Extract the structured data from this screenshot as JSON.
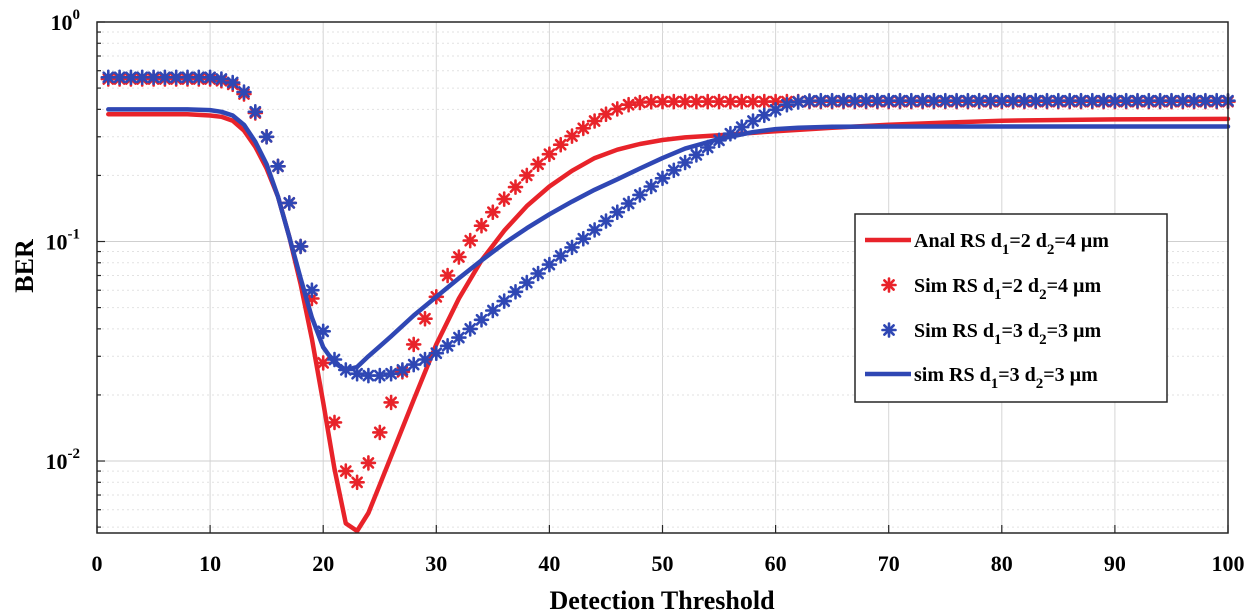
{
  "chart_data": {
    "type": "line",
    "title": "",
    "xlabel": "Detection Threshold",
    "ylabel": "BER",
    "xlim": [
      0,
      100
    ],
    "ylim": [
      0.0047,
      1
    ],
    "yscale": "log",
    "grid": true,
    "legend_position": "center-right",
    "x_ticks": [
      0,
      10,
      20,
      30,
      40,
      50,
      60,
      70,
      80,
      90,
      100
    ],
    "x_tick_labels": [
      "0",
      "10",
      "20",
      "30",
      "40",
      "50",
      "60",
      "70",
      "80",
      "90",
      "100"
    ],
    "y_ticks": [
      {
        "value": 1,
        "base": "10",
        "exp": "0"
      },
      {
        "value": 0.1,
        "base": "10",
        "exp": "-1"
      },
      {
        "value": 0.01,
        "base": "10",
        "exp": "-2"
      }
    ],
    "colors": {
      "red": "#e8232a",
      "blue": "#2f47b4"
    },
    "series": [
      {
        "name": "Anal RS d1=2 d2=4 µm",
        "legend": {
          "pre": "Anal RS d",
          "s1": "1",
          "mid": "=2 d",
          "s2": "2",
          "post": "=4 µm"
        },
        "style": "line",
        "color": "#e8232a",
        "x": [
          1,
          5,
          8,
          10,
          11,
          12,
          13,
          14,
          15,
          16,
          17,
          18,
          19,
          20,
          21,
          22,
          23,
          24,
          25,
          26,
          28,
          30,
          32,
          34,
          36,
          38,
          40,
          42,
          44,
          46,
          48,
          50,
          52,
          55,
          60,
          65,
          70,
          75,
          80,
          90,
          100
        ],
        "y": [
          0.38,
          0.38,
          0.38,
          0.375,
          0.37,
          0.355,
          0.32,
          0.27,
          0.215,
          0.16,
          0.105,
          0.064,
          0.036,
          0.0185,
          0.0092,
          0.0052,
          0.0048,
          0.0058,
          0.0078,
          0.0105,
          0.019,
          0.034,
          0.055,
          0.082,
          0.112,
          0.145,
          0.178,
          0.21,
          0.24,
          0.262,
          0.278,
          0.29,
          0.298,
          0.305,
          0.318,
          0.33,
          0.34,
          0.348,
          0.355,
          0.36,
          0.362
        ]
      },
      {
        "name": "Sim RS d1=2 d2=4 µm",
        "legend": {
          "pre": "Sim RS d",
          "s1": "1",
          "mid": "=2 d",
          "s2": "2",
          "post": "=4 µm"
        },
        "style": "markers",
        "color": "#e8232a",
        "x": [
          1,
          2,
          3,
          4,
          5,
          6,
          7,
          8,
          9,
          10,
          11,
          12,
          13,
          14,
          15,
          16,
          17,
          18,
          19,
          20,
          21,
          22,
          23,
          24,
          25,
          26,
          27,
          28,
          29,
          30,
          31,
          32,
          33,
          34,
          35,
          36,
          37,
          38,
          39,
          40,
          41,
          42,
          43,
          44,
          45,
          46,
          47,
          48,
          49,
          50,
          51,
          52,
          53,
          54,
          55,
          56,
          57,
          58,
          59,
          60,
          61,
          62,
          63,
          64,
          65,
          66,
          67,
          68,
          69,
          70,
          71,
          72,
          73,
          74,
          75,
          76,
          77,
          78,
          79,
          80,
          81,
          82,
          83,
          84,
          85,
          86,
          87,
          88,
          89,
          90,
          91,
          92,
          93,
          94,
          95,
          96,
          97,
          98,
          99,
          100
        ],
        "y": [
          0.55,
          0.55,
          0.55,
          0.55,
          0.55,
          0.55,
          0.55,
          0.55,
          0.55,
          0.55,
          0.54,
          0.52,
          0.47,
          0.385,
          0.3,
          0.22,
          0.15,
          0.095,
          0.055,
          0.028,
          0.015,
          0.009,
          0.008,
          0.0098,
          0.0135,
          0.0185,
          0.0255,
          0.034,
          0.0445,
          0.056,
          0.07,
          0.085,
          0.101,
          0.118,
          0.136,
          0.156,
          0.177,
          0.2,
          0.225,
          0.25,
          0.276,
          0.302,
          0.328,
          0.354,
          0.38,
          0.402,
          0.42,
          0.43,
          0.433,
          0.434,
          0.434,
          0.434,
          0.434,
          0.434,
          0.434,
          0.434,
          0.434,
          0.434,
          0.434,
          0.434,
          0.434,
          0.434,
          0.434,
          0.434,
          0.434,
          0.434,
          0.434,
          0.434,
          0.434,
          0.434,
          0.434,
          0.434,
          0.434,
          0.434,
          0.434,
          0.434,
          0.434,
          0.434,
          0.434,
          0.434,
          0.434,
          0.434,
          0.434,
          0.434,
          0.434,
          0.434,
          0.434,
          0.434,
          0.434,
          0.434,
          0.434,
          0.434,
          0.434,
          0.434,
          0.434,
          0.434,
          0.434,
          0.434,
          0.434,
          0.434
        ]
      },
      {
        "name": "Sim RS d1=3 d2=3 µm",
        "legend": {
          "pre": "Sim RS d",
          "s1": "1",
          "mid": "=3 d",
          "s2": "2",
          "post": "=3 µm"
        },
        "style": "markers",
        "color": "#2f47b4",
        "x": [
          1,
          2,
          3,
          4,
          5,
          6,
          7,
          8,
          9,
          10,
          11,
          12,
          13,
          14,
          15,
          16,
          17,
          18,
          19,
          20,
          21,
          22,
          23,
          24,
          25,
          26,
          27,
          28,
          29,
          30,
          31,
          32,
          33,
          34,
          35,
          36,
          37,
          38,
          39,
          40,
          41,
          42,
          43,
          44,
          45,
          46,
          47,
          48,
          49,
          50,
          51,
          52,
          53,
          54,
          55,
          56,
          57,
          58,
          59,
          60,
          61,
          62,
          63,
          64,
          65,
          66,
          67,
          68,
          69,
          70,
          71,
          72,
          73,
          74,
          75,
          76,
          77,
          78,
          79,
          80,
          81,
          82,
          83,
          84,
          85,
          86,
          87,
          88,
          89,
          90,
          91,
          92,
          93,
          94,
          95,
          96,
          97,
          98,
          99,
          100
        ],
        "y": [
          0.56,
          0.56,
          0.56,
          0.56,
          0.56,
          0.56,
          0.56,
          0.56,
          0.56,
          0.56,
          0.55,
          0.53,
          0.48,
          0.39,
          0.3,
          0.22,
          0.15,
          0.095,
          0.06,
          0.039,
          0.029,
          0.026,
          0.025,
          0.0245,
          0.0245,
          0.025,
          0.026,
          0.0275,
          0.029,
          0.031,
          0.0335,
          0.0365,
          0.04,
          0.044,
          0.0485,
          0.0535,
          0.059,
          0.065,
          0.0715,
          0.0785,
          0.086,
          0.094,
          0.103,
          0.113,
          0.124,
          0.136,
          0.149,
          0.163,
          0.178,
          0.194,
          0.211,
          0.229,
          0.248,
          0.268,
          0.289,
          0.31,
          0.332,
          0.354,
          0.376,
          0.398,
          0.42,
          0.432,
          0.437,
          0.438,
          0.438,
          0.438,
          0.438,
          0.438,
          0.438,
          0.438,
          0.438,
          0.438,
          0.438,
          0.438,
          0.438,
          0.438,
          0.438,
          0.438,
          0.438,
          0.438,
          0.438,
          0.438,
          0.438,
          0.438,
          0.438,
          0.438,
          0.438,
          0.438,
          0.438,
          0.438,
          0.438,
          0.438,
          0.438,
          0.438,
          0.438,
          0.438,
          0.438,
          0.438,
          0.438,
          0.438
        ]
      },
      {
        "name": "sim RS d1=3 d2=3 µm",
        "legend": {
          "pre": "sim RS d",
          "s1": "1",
          "mid": "=3 d",
          "s2": "2",
          "post": "=3 µm"
        },
        "style": "line",
        "color": "#2f47b4",
        "x": [
          1,
          5,
          8,
          10,
          11,
          12,
          13,
          14,
          15,
          16,
          17,
          18,
          19,
          20,
          21,
          22,
          23,
          24,
          26,
          28,
          30,
          32,
          34,
          36,
          38,
          40,
          42,
          44,
          46,
          48,
          50,
          52,
          55,
          58,
          60,
          62,
          65,
          70,
          80,
          90,
          100
        ],
        "y": [
          0.4,
          0.4,
          0.4,
          0.397,
          0.39,
          0.375,
          0.34,
          0.285,
          0.225,
          0.16,
          0.105,
          0.068,
          0.045,
          0.033,
          0.028,
          0.026,
          0.0268,
          0.03,
          0.037,
          0.046,
          0.056,
          0.068,
          0.082,
          0.098,
          0.115,
          0.133,
          0.152,
          0.172,
          0.192,
          0.215,
          0.24,
          0.265,
          0.293,
          0.315,
          0.325,
          0.33,
          0.333,
          0.334,
          0.334,
          0.334,
          0.334
        ]
      }
    ]
  }
}
